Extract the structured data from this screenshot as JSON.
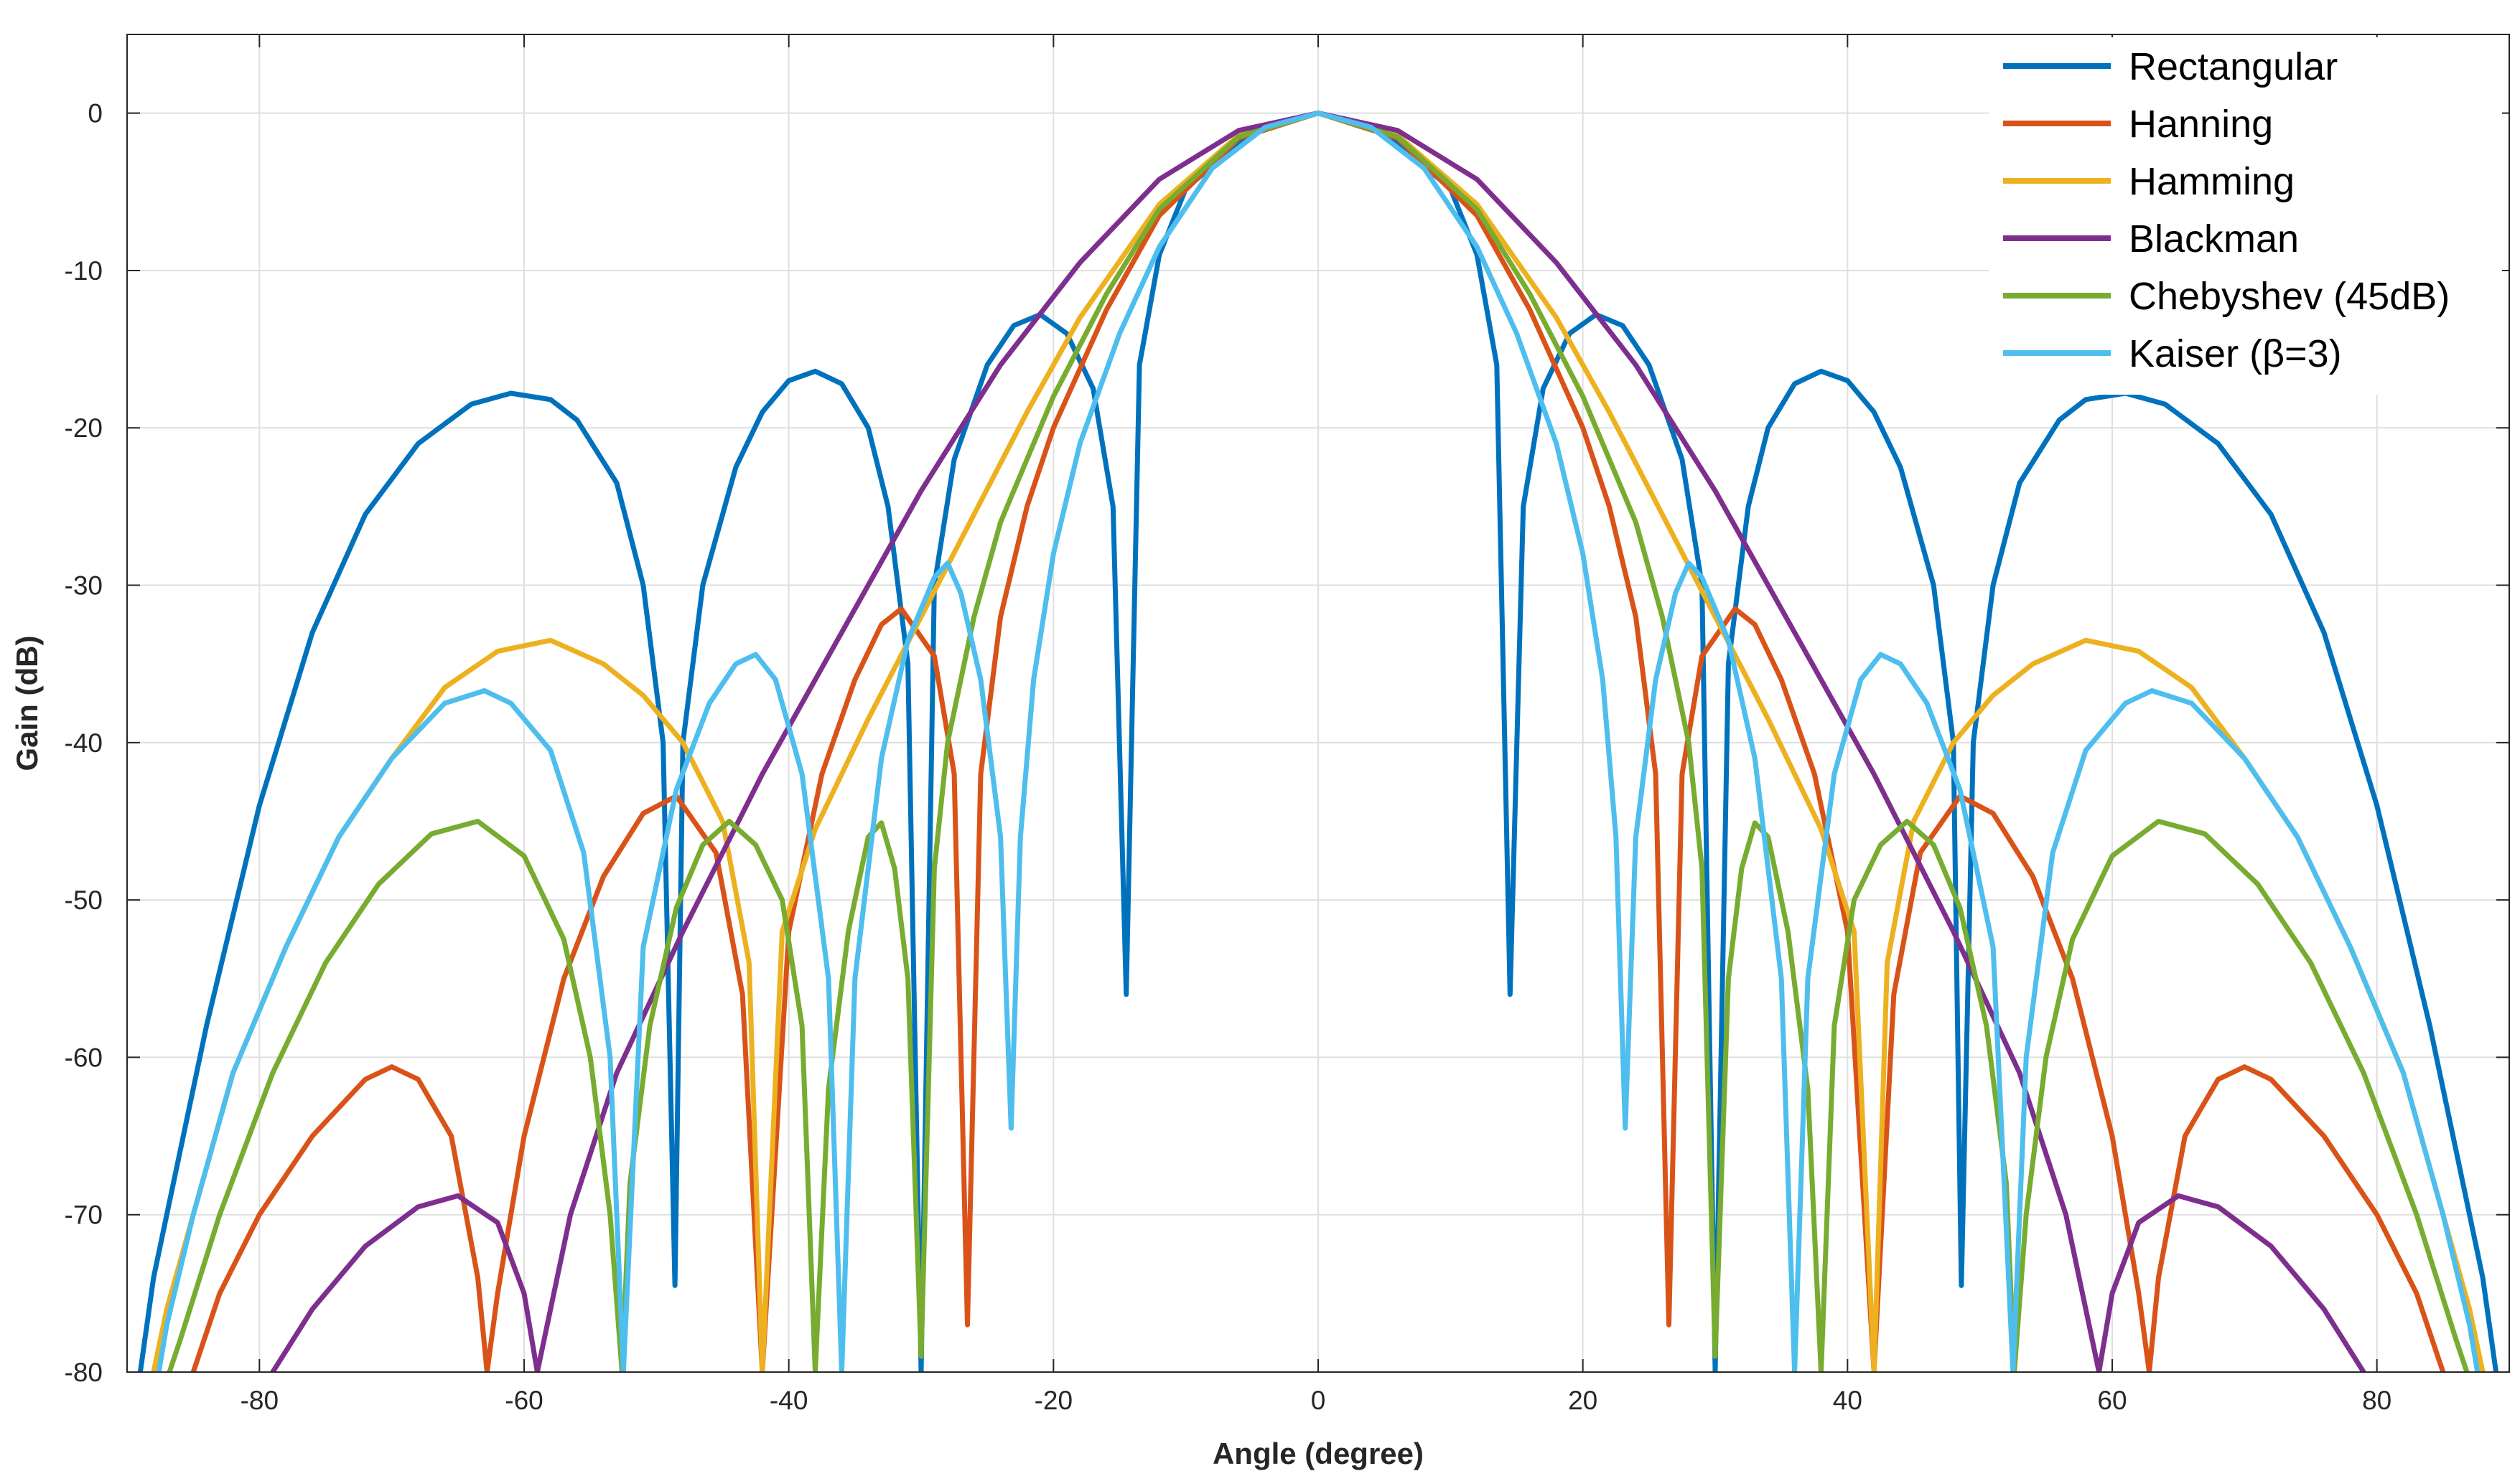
{
  "chart_data": {
    "type": "line",
    "title": "",
    "xlabel": "Angle (degree)",
    "ylabel": "Gain (dB)",
    "xlim": [
      -90,
      90
    ],
    "ylim": [
      -80,
      5
    ],
    "xticks": [
      -80,
      -60,
      -40,
      -20,
      0,
      20,
      40,
      60,
      80
    ],
    "yticks": [
      0,
      -10,
      -20,
      -30,
      -40,
      -50,
      -60,
      -70,
      -80
    ],
    "xtick_labels": [
      "-80",
      "-60",
      "-40",
      "-20",
      "0",
      "20",
      "40",
      "60",
      "80"
    ],
    "ytick_labels": [
      "0",
      "-10",
      "-20",
      "-30",
      "-40",
      "-50",
      "-60",
      "-70",
      "-80"
    ],
    "grid": true,
    "legend_position": "top-right",
    "series": [
      {
        "name": "Rectangular",
        "color": "#0072BD",
        "points": [
          [
            0,
            0
          ],
          [
            5,
            -1.2
          ],
          [
            10,
            -4.8
          ],
          [
            12,
            -9
          ],
          [
            13.5,
            -16
          ],
          [
            14.5,
            -56
          ],
          [
            15.5,
            -25
          ],
          [
            17,
            -17.5
          ],
          [
            19,
            -14
          ],
          [
            21,
            -12.8
          ],
          [
            23,
            -13.5
          ],
          [
            25,
            -16
          ],
          [
            27.5,
            -22
          ],
          [
            29,
            -30
          ],
          [
            30,
            -80
          ],
          [
            31,
            -35
          ],
          [
            32.5,
            -25
          ],
          [
            34,
            -20
          ],
          [
            36,
            -17.2
          ],
          [
            38,
            -16.4
          ],
          [
            40,
            -17
          ],
          [
            42,
            -19
          ],
          [
            44,
            -22.5
          ],
          [
            46.5,
            -30
          ],
          [
            48,
            -40
          ],
          [
            48.6,
            -74.5
          ],
          [
            49.5,
            -40
          ],
          [
            51,
            -30
          ],
          [
            53,
            -23.5
          ],
          [
            56,
            -19.5
          ],
          [
            58,
            -18.2
          ],
          [
            61,
            -17.8
          ],
          [
            64,
            -18.5
          ],
          [
            68,
            -21
          ],
          [
            72,
            -25.5
          ],
          [
            76,
            -33
          ],
          [
            80,
            -44
          ],
          [
            84,
            -58
          ],
          [
            86.5,
            -68
          ],
          [
            88,
            -74
          ],
          [
            89,
            -80
          ]
        ]
      },
      {
        "name": "Hanning",
        "color": "#D95319",
        "points": [
          [
            0,
            0
          ],
          [
            6,
            -1.6
          ],
          [
            12,
            -6.5
          ],
          [
            16,
            -12.5
          ],
          [
            20,
            -20
          ],
          [
            22,
            -25
          ],
          [
            24,
            -32
          ],
          [
            25.5,
            -42
          ],
          [
            26.5,
            -77
          ],
          [
            27.5,
            -42
          ],
          [
            29,
            -34.5
          ],
          [
            31.5,
            -31.5
          ],
          [
            33,
            -32.5
          ],
          [
            35,
            -36
          ],
          [
            37.5,
            -42
          ],
          [
            40,
            -52
          ],
          [
            42,
            -80
          ],
          [
            43.5,
            -56
          ],
          [
            45.5,
            -47
          ],
          [
            48.5,
            -43.4
          ],
          [
            51,
            -44.5
          ],
          [
            54,
            -48.5
          ],
          [
            57,
            -55
          ],
          [
            60,
            -65
          ],
          [
            62,
            -75
          ],
          [
            62.8,
            -80
          ],
          [
            63.5,
            -74
          ],
          [
            65.5,
            -65
          ],
          [
            68,
            -61.4
          ],
          [
            70,
            -60.6
          ],
          [
            72,
            -61.4
          ],
          [
            76,
            -65
          ],
          [
            80,
            -70
          ],
          [
            83,
            -75
          ],
          [
            85,
            -80
          ]
        ]
      },
      {
        "name": "Hamming",
        "color": "#EDB120",
        "points": [
          [
            0,
            0
          ],
          [
            6,
            -1.4
          ],
          [
            12,
            -5.8
          ],
          [
            18,
            -13
          ],
          [
            22,
            -19
          ],
          [
            26,
            -25.5
          ],
          [
            30,
            -32
          ],
          [
            34,
            -38.5
          ],
          [
            38,
            -45.5
          ],
          [
            40.5,
            -52
          ],
          [
            42,
            -80
          ],
          [
            43,
            -54
          ],
          [
            45,
            -45
          ],
          [
            48,
            -40
          ],
          [
            51,
            -37
          ],
          [
            54,
            -35
          ],
          [
            58,
            -33.5
          ],
          [
            62,
            -34.2
          ],
          [
            66,
            -36.5
          ],
          [
            70,
            -41
          ],
          [
            74,
            -46
          ],
          [
            78,
            -53
          ],
          [
            82,
            -61
          ],
          [
            85,
            -70
          ],
          [
            87,
            -76
          ],
          [
            88,
            -80
          ]
        ]
      },
      {
        "name": "Blackman",
        "color": "#7E2F8E",
        "points": [
          [
            0,
            0
          ],
          [
            6,
            -1.1
          ],
          [
            12,
            -4.2
          ],
          [
            18,
            -9.5
          ],
          [
            24,
            -16
          ],
          [
            30,
            -24
          ],
          [
            36,
            -33
          ],
          [
            42,
            -42
          ],
          [
            48,
            -52
          ],
          [
            53,
            -61
          ],
          [
            56.5,
            -70
          ],
          [
            59,
            -80
          ],
          [
            60,
            -75
          ],
          [
            62,
            -70.5
          ],
          [
            65,
            -68.8
          ],
          [
            68,
            -69.5
          ],
          [
            72,
            -72
          ],
          [
            76,
            -76
          ],
          [
            79,
            -80
          ]
        ]
      },
      {
        "name": "Chebyshev (45dB)",
        "color": "#77AC30",
        "points": [
          [
            0,
            0
          ],
          [
            6,
            -1.5
          ],
          [
            12,
            -6.1
          ],
          [
            16,
            -11.5
          ],
          [
            20,
            -18
          ],
          [
            24,
            -26
          ],
          [
            26,
            -32
          ],
          [
            28,
            -40
          ],
          [
            29,
            -48
          ],
          [
            30,
            -79
          ],
          [
            31,
            -55
          ],
          [
            32,
            -48
          ],
          [
            33,
            -45.1
          ],
          [
            34,
            -46
          ],
          [
            35.5,
            -52
          ],
          [
            37,
            -62
          ],
          [
            38,
            -80
          ],
          [
            39,
            -58
          ],
          [
            40.5,
            -50
          ],
          [
            42.5,
            -46.5
          ],
          [
            44.5,
            -45
          ],
          [
            46.5,
            -46.5
          ],
          [
            48.5,
            -50.5
          ],
          [
            50.5,
            -58
          ],
          [
            52,
            -68
          ],
          [
            52.6,
            -80
          ],
          [
            53.5,
            -70
          ],
          [
            55,
            -60
          ],
          [
            57,
            -52.5
          ],
          [
            60,
            -47.2
          ],
          [
            63.5,
            -45
          ],
          [
            67,
            -45.8
          ],
          [
            71,
            -49
          ],
          [
            75,
            -54
          ],
          [
            79,
            -61
          ],
          [
            83,
            -70
          ],
          [
            86,
            -78
          ],
          [
            86.8,
            -80
          ]
        ]
      },
      {
        "name": "Kaiser (β=3)",
        "color": "#4DBEEE",
        "points": [
          [
            0,
            0
          ],
          [
            4,
            -0.9
          ],
          [
            8,
            -3.5
          ],
          [
            12,
            -8.5
          ],
          [
            15,
            -14
          ],
          [
            18,
            -21
          ],
          [
            20,
            -28
          ],
          [
            21.5,
            -36
          ],
          [
            22.5,
            -46
          ],
          [
            23.2,
            -64.5
          ],
          [
            24,
            -46
          ],
          [
            25.5,
            -36
          ],
          [
            27,
            -30.5
          ],
          [
            28,
            -28.6
          ],
          [
            29,
            -29.5
          ],
          [
            31,
            -33.5
          ],
          [
            33,
            -41
          ],
          [
            35,
            -55
          ],
          [
            36,
            -80
          ],
          [
            37,
            -55
          ],
          [
            39,
            -42
          ],
          [
            41,
            -36
          ],
          [
            42.5,
            -34.4
          ],
          [
            44,
            -35
          ],
          [
            46,
            -37.5
          ],
          [
            48.5,
            -43
          ],
          [
            51,
            -53
          ],
          [
            52.5,
            -80
          ],
          [
            53.5,
            -60
          ],
          [
            55.5,
            -47
          ],
          [
            58,
            -40.5
          ],
          [
            61,
            -37.5
          ],
          [
            63,
            -36.7
          ],
          [
            66,
            -37.5
          ],
          [
            70,
            -41
          ],
          [
            74,
            -46
          ],
          [
            78,
            -53
          ],
          [
            82,
            -61
          ],
          [
            85,
            -70
          ],
          [
            87,
            -77
          ],
          [
            87.6,
            -80
          ]
        ]
      }
    ]
  }
}
